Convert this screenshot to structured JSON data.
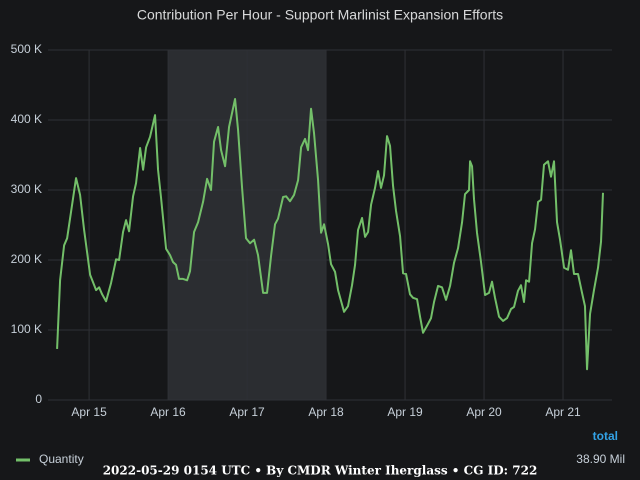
{
  "chart_data": {
    "type": "line",
    "title": "Contribution Per Hour - Support Marlinist Expansion Efforts",
    "x": [
      14.595,
      14.633,
      14.684,
      14.722,
      14.772,
      14.835,
      14.886,
      14.937,
      15.013,
      15.089,
      15.127,
      15.165,
      15.215,
      15.278,
      15.342,
      15.38,
      15.43,
      15.468,
      15.506,
      15.557,
      15.595,
      15.646,
      15.684,
      15.722,
      15.772,
      15.835,
      15.873,
      15.911,
      15.975,
      16.025,
      16.063,
      16.101,
      16.139,
      16.19,
      16.241,
      16.278,
      16.329,
      16.38,
      16.443,
      16.494,
      16.544,
      16.582,
      16.633,
      16.671,
      16.722,
      16.772,
      16.81,
      16.848,
      16.886,
      16.937,
      16.987,
      17.038,
      17.089,
      17.139,
      17.203,
      17.253,
      17.304,
      17.354,
      17.392,
      17.456,
      17.494,
      17.544,
      17.595,
      17.646,
      17.684,
      17.734,
      17.772,
      17.81,
      17.848,
      17.899,
      17.937,
      17.975,
      18.025,
      18.063,
      18.114,
      18.152,
      18.228,
      18.278,
      18.329,
      18.367,
      18.405,
      18.456,
      18.494,
      18.532,
      18.57,
      18.62,
      18.658,
      18.696,
      18.734,
      18.772,
      18.81,
      18.848,
      18.886,
      18.937,
      18.975,
      19.013,
      19.063,
      19.101,
      19.152,
      19.19,
      19.228,
      19.278,
      19.329,
      19.367,
      19.418,
      19.468,
      19.519,
      19.57,
      19.62,
      19.671,
      19.722,
      19.759,
      19.81,
      19.823,
      19.848,
      19.873,
      19.911,
      19.962,
      20.013,
      20.063,
      20.101,
      20.139,
      20.19,
      20.241,
      20.291,
      20.342,
      20.38,
      20.43,
      20.468,
      20.506,
      20.532,
      20.57,
      20.608,
      20.646,
      20.684,
      20.722,
      20.759,
      20.81,
      20.848,
      20.886,
      20.924,
      20.962,
      21.013,
      21.063,
      21.101,
      21.139,
      21.19,
      21.241,
      21.278,
      21.304,
      21.342,
      21.392,
      21.443,
      21.481,
      21.506
    ],
    "series": [
      {
        "name": "Quantity",
        "color": "#73bf69",
        "values": [
          73000,
          171000,
          221000,
          231000,
          269000,
          317000,
          293000,
          243000,
          179000,
          157000,
          161000,
          151000,
          141000,
          167000,
          201000,
          200000,
          240000,
          257000,
          241000,
          291000,
          310000,
          360000,
          329000,
          361000,
          376000,
          407000,
          329000,
          289000,
          216000,
          207000,
          197000,
          193000,
          173000,
          173000,
          171000,
          184000,
          240000,
          254000,
          283000,
          316000,
          300000,
          369000,
          390000,
          357000,
          334000,
          390000,
          410000,
          430000,
          386000,
          303000,
          231000,
          224000,
          229000,
          207000,
          153000,
          153000,
          206000,
          251000,
          259000,
          290000,
          291000,
          284000,
          293000,
          314000,
          361000,
          373000,
          357000,
          416000,
          381000,
          314000,
          239000,
          251000,
          223000,
          194000,
          183000,
          157000,
          126000,
          134000,
          164000,
          193000,
          243000,
          260000,
          233000,
          240000,
          279000,
          303000,
          327000,
          303000,
          321000,
          377000,
          363000,
          306000,
          270000,
          234000,
          181000,
          180000,
          151000,
          146000,
          144000,
          119000,
          96000,
          106000,
          117000,
          140000,
          163000,
          161000,
          143000,
          163000,
          196000,
          217000,
          254000,
          294000,
          300000,
          341000,
          334000,
          287000,
          239000,
          197000,
          150000,
          153000,
          169000,
          146000,
          119000,
          113000,
          117000,
          130000,
          133000,
          156000,
          164000,
          140000,
          171000,
          169000,
          224000,
          244000,
          283000,
          286000,
          336000,
          341000,
          319000,
          341000,
          254000,
          229000,
          189000,
          186000,
          214000,
          180000,
          180000,
          153000,
          134000,
          44000,
          123000,
          157000,
          189000,
          226000,
          296000
        ]
      }
    ],
    "xlim": [
      14.48,
      21.62
    ],
    "ylim": [
      0,
      500000
    ],
    "xticks": [
      {
        "value": 15,
        "label": "Apr 15"
      },
      {
        "value": 16,
        "label": "Apr 16"
      },
      {
        "value": 17,
        "label": "Apr 17"
      },
      {
        "value": 18,
        "label": "Apr 18"
      },
      {
        "value": 19,
        "label": "Apr 19"
      },
      {
        "value": 20,
        "label": "Apr 20"
      },
      {
        "value": 21,
        "label": "Apr 21"
      }
    ],
    "yticks": [
      0,
      {
        "value": 100000,
        "label": "100 K"
      },
      {
        "value": 200000,
        "label": "200 K"
      },
      {
        "value": 300000,
        "label": "300 K"
      },
      {
        "value": 400000,
        "label": "400 K"
      },
      {
        "value": 500000,
        "label": "500 K"
      }
    ],
    "grid": true,
    "highlight": [
      16,
      18
    ],
    "legend_header": "total",
    "legend_totals": [
      "38.90 Mil"
    ]
  },
  "footer": "2022-05-29 0154 UTC • By CMDR Winter Iherglass • CG ID: 722"
}
